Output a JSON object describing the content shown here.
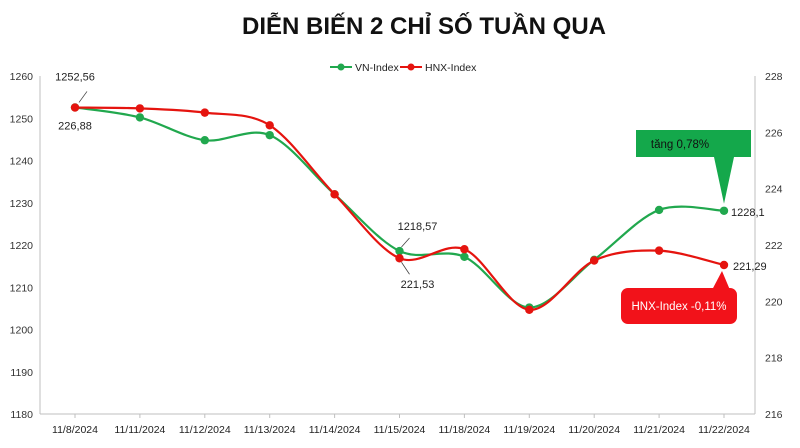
{
  "chart_data": {
    "type": "line",
    "title": "DIỄN BIẾN 2 CHỈ SỐ TUẦN QUA",
    "categories": [
      "11/8/2024",
      "11/11/2024",
      "11/12/2024",
      "11/13/2024",
      "11/14/2024",
      "11/15/2024",
      "11/18/2024",
      "11/19/2024",
      "11/20/2024",
      "11/21/2024",
      "11/22/2024"
    ],
    "series": [
      {
        "name": "VN-Index",
        "axis": "left",
        "color": "#21a84e",
        "values": [
          1252.56,
          1250.2,
          1244.8,
          1246.0,
          1232.0,
          1218.57,
          1217.2,
          1205.2,
          1216.5,
          1228.3,
          1228.1
        ]
      },
      {
        "name": "HNX-Index",
        "axis": "right",
        "color": "#e5140f",
        "values": [
          226.88,
          226.85,
          226.7,
          226.25,
          223.8,
          221.53,
          221.85,
          219.7,
          221.45,
          221.8,
          221.29
        ]
      }
    ],
    "left_axis": {
      "ylim": [
        1180,
        1260
      ],
      "ticks": [
        "1180",
        "1190",
        "1200",
        "1210",
        "1220",
        "1230",
        "1240",
        "1250",
        "1260"
      ]
    },
    "right_axis": {
      "ylim": [
        216,
        228
      ],
      "ticks": [
        "216",
        "218",
        "220",
        "222",
        "224",
        "226",
        "228"
      ]
    },
    "legend_position": "top-center",
    "grid": false,
    "data_labels": [
      {
        "series": 0,
        "index": 0,
        "text": "1252,56"
      },
      {
        "series": 1,
        "index": 0,
        "text": "226,88"
      },
      {
        "series": 0,
        "index": 5,
        "text": "1218,57"
      },
      {
        "series": 1,
        "index": 5,
        "text": "221,53"
      },
      {
        "series": 0,
        "index": 10,
        "text": "1228,1"
      },
      {
        "series": 1,
        "index": 10,
        "text": "221,29"
      }
    ],
    "callouts": [
      {
        "text": "tăng 0,78%",
        "color": "#14a84b",
        "text_color": "#111111",
        "points_to": {
          "series": 0,
          "index": 10
        }
      },
      {
        "text": "HNX-Index -0,11%",
        "color": "#f2121a",
        "text_color": "#ffffff",
        "points_to": {
          "series": 1,
          "index": 10
        }
      }
    ]
  }
}
